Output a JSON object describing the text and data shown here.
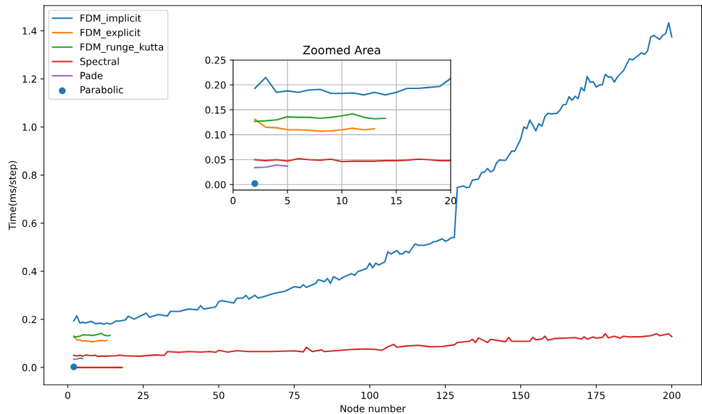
{
  "chart_data": [
    {
      "type": "line",
      "xlabel": "Node number",
      "ylabel": "Time(ms/step)",
      "xlim": [
        -7.9,
        209.9
      ],
      "ylim": [
        -0.072,
        1.505
      ],
      "xticks": [
        0,
        25,
        50,
        75,
        100,
        125,
        150,
        175,
        200
      ],
      "yticks": [
        {
          "value": 0,
          "label": "0.0"
        },
        {
          "value": 0.2,
          "label": "0.2"
        },
        {
          "value": 0.4,
          "label": "0.4"
        },
        {
          "value": 0.6,
          "label": "0.6"
        },
        {
          "value": 0.8,
          "label": "0.8"
        },
        {
          "value": 1.0,
          "label": "1.0"
        },
        {
          "value": 1.2,
          "label": "1.2"
        },
        {
          "value": 1.4,
          "label": "1.4"
        }
      ],
      "grid": false,
      "legend": "top left",
      "series": [
        {
          "name": "FDM_implicit",
          "color": "#1f77b4",
          "type": "line",
          "x": [
            2,
            3,
            4,
            5,
            6,
            7,
            8,
            9,
            10,
            11,
            12,
            13,
            14,
            15,
            16,
            17,
            18,
            19,
            20,
            22,
            26,
            27,
            30,
            33,
            34,
            37,
            40,
            43,
            44,
            45,
            48,
            49,
            50,
            51,
            55,
            56,
            58,
            59,
            60,
            62,
            63,
            65,
            68,
            72,
            75,
            77,
            78,
            79,
            82,
            83,
            85,
            86,
            87,
            88,
            90,
            91,
            94,
            95,
            96,
            99,
            100,
            101,
            102,
            103,
            105,
            106,
            107,
            109,
            110,
            111,
            112,
            113,
            115,
            116,
            118,
            120,
            121,
            122,
            124,
            125,
            126,
            127,
            128,
            129,
            131,
            132,
            133,
            134,
            136,
            137,
            138,
            139,
            140,
            141,
            142,
            143,
            145,
            147,
            148,
            150,
            151,
            152,
            153,
            155,
            156,
            157,
            158,
            159,
            160,
            162,
            163,
            164,
            165,
            166,
            167,
            168,
            169,
            170,
            171,
            172,
            173,
            174,
            175,
            176,
            177,
            178,
            179,
            180,
            181,
            182,
            184,
            186,
            187,
            189,
            190,
            191,
            192,
            193,
            194,
            196,
            197,
            198,
            199,
            200
          ],
          "values": [
            0.193,
            0.215,
            0.185,
            0.188,
            0.185,
            0.19,
            0.191,
            0.183,
            0.183,
            0.184,
            0.18,
            0.185,
            0.18,
            0.185,
            0.193,
            0.193,
            0.195,
            0.197,
            0.213,
            0.201,
            0.226,
            0.209,
            0.22,
            0.214,
            0.233,
            0.233,
            0.243,
            0.24,
            0.257,
            0.243,
            0.249,
            0.252,
            0.274,
            0.278,
            0.268,
            0.288,
            0.288,
            0.3,
            0.284,
            0.3,
            0.288,
            0.295,
            0.307,
            0.317,
            0.336,
            0.332,
            0.344,
            0.333,
            0.349,
            0.365,
            0.357,
            0.37,
            0.35,
            0.378,
            0.364,
            0.374,
            0.39,
            0.383,
            0.398,
            0.412,
            0.434,
            0.414,
            0.434,
            0.426,
            0.439,
            0.481,
            0.472,
            0.486,
            0.472,
            0.473,
            0.484,
            0.477,
            0.514,
            0.508,
            0.508,
            0.514,
            0.522,
            0.524,
            0.535,
            0.525,
            0.53,
            0.54,
            0.54,
            0.748,
            0.755,
            0.748,
            0.75,
            0.779,
            0.784,
            0.81,
            0.813,
            0.827,
            0.813,
            0.82,
            0.851,
            0.863,
            0.861,
            0.9,
            0.899,
            0.95,
            1.0,
            0.993,
            1.029,
            0.984,
            1.014,
            1.003,
            1.043,
            1.057,
            1.054,
            1.057,
            1.07,
            1.092,
            1.094,
            1.126,
            1.111,
            1.128,
            1.118,
            1.164,
            1.15,
            1.21,
            1.186,
            1.188,
            1.166,
            1.174,
            1.176,
            1.219,
            1.208,
            1.208,
            1.187,
            1.208,
            1.234,
            1.284,
            1.279,
            1.298,
            1.309,
            1.301,
            1.317,
            1.373,
            1.381,
            1.364,
            1.381,
            1.388,
            1.433,
            1.375
          ]
        },
        {
          "name": "FDM_explicit",
          "color": "#ff7f0e",
          "type": "line",
          "x": [
            2,
            3,
            4,
            5,
            6,
            7,
            8,
            9,
            10,
            11,
            12,
            13
          ],
          "values": [
            0.131,
            0.115,
            0.114,
            0.11,
            0.11,
            0.109,
            0.107,
            0.108,
            0.11,
            0.113,
            0.11,
            0.112
          ]
        },
        {
          "name": "FDM_runge_kutta",
          "color": "#2ca02c",
          "type": "line",
          "x": [
            2,
            3,
            4,
            5,
            6,
            7,
            8,
            9,
            10,
            11,
            12,
            13,
            14
          ],
          "values": [
            0.127,
            0.128,
            0.13,
            0.136,
            0.135,
            0.135,
            0.133,
            0.135,
            0.138,
            0.142,
            0.135,
            0.132,
            0.133
          ]
        },
        {
          "name": "Spectral",
          "color": "#d62728",
          "type": "line",
          "x": [
            2,
            3,
            4,
            5,
            6,
            7,
            8,
            9,
            10,
            11,
            12,
            13,
            14,
            15,
            16,
            17,
            18,
            19,
            20,
            24,
            29,
            32,
            33,
            37,
            40,
            44,
            47,
            49,
            50,
            53,
            56,
            60,
            67,
            75,
            78,
            79,
            81,
            84,
            85,
            94,
            99,
            102,
            104,
            106,
            108,
            109,
            112,
            116,
            120,
            124,
            128,
            129,
            133,
            134,
            135,
            136,
            139,
            140,
            145,
            146,
            147,
            153,
            154,
            155,
            157,
            158,
            159,
            161,
            168,
            170,
            171,
            172,
            174,
            175,
            177,
            178,
            179,
            181,
            183,
            184,
            186,
            190,
            193,
            195,
            196,
            199,
            200
          ],
          "values": [
            0.05,
            0.048,
            0.05,
            0.047,
            0.052,
            0.05,
            0.049,
            0.051,
            0.046,
            0.047,
            0.047,
            0.047,
            0.048,
            0.048,
            0.049,
            0.051,
            0.05,
            0.048,
            0.048,
            0.047,
            0.052,
            0.05,
            0.066,
            0.063,
            0.066,
            0.064,
            0.066,
            0.063,
            0.071,
            0.064,
            0.07,
            0.066,
            0.066,
            0.069,
            0.065,
            0.084,
            0.066,
            0.073,
            0.066,
            0.075,
            0.077,
            0.075,
            0.071,
            0.086,
            0.096,
            0.084,
            0.089,
            0.092,
            0.086,
            0.087,
            0.094,
            0.104,
            0.109,
            0.117,
            0.104,
            0.123,
            0.104,
            0.117,
            0.107,
            0.125,
            0.109,
            0.109,
            0.125,
            0.115,
            0.118,
            0.13,
            0.113,
            0.12,
            0.124,
            0.118,
            0.127,
            0.118,
            0.127,
            0.122,
            0.125,
            0.14,
            0.123,
            0.13,
            0.122,
            0.13,
            0.127,
            0.128,
            0.132,
            0.14,
            0.132,
            0.14,
            0.128
          ]
        },
        {
          "name": "Pade",
          "color": "#9467bd",
          "type": "line",
          "x": [
            2,
            3,
            4,
            5
          ],
          "values": [
            0.034,
            0.035,
            0.039,
            0.037
          ]
        },
        {
          "name": "Parabolic",
          "color": "#1f77b4",
          "type": "scatter",
          "x": [
            2
          ],
          "values": [
            0.002
          ]
        },
        {
          "color": "#ff0000",
          "type": "line",
          "x": [
            2,
            18
          ],
          "values": [
            0,
            0
          ]
        }
      ]
    },
    {
      "type": "line",
      "title": "Zoomed Area",
      "xlim": [
        0,
        20
      ],
      "ylim": [
        -0.011,
        0.25
      ],
      "xticks": [
        0,
        5,
        10,
        15,
        20
      ],
      "yticks": [
        {
          "value": 0,
          "label": "0.00"
        },
        {
          "value": 0.05,
          "label": "0.05"
        },
        {
          "value": 0.1,
          "label": "0.10"
        },
        {
          "value": 0.15,
          "label": "0.15"
        },
        {
          "value": 0.2,
          "label": "0.20"
        },
        {
          "value": 0.25,
          "label": "0.25"
        }
      ],
      "grid": true,
      "series": [
        {
          "color": "#1f77b4",
          "type": "line",
          "x": [
            2,
            3,
            4,
            5,
            6,
            7,
            8,
            9,
            10,
            11,
            12,
            13,
            14,
            15,
            16,
            17,
            18,
            19,
            20
          ],
          "values": [
            0.193,
            0.215,
            0.185,
            0.188,
            0.185,
            0.19,
            0.191,
            0.183,
            0.183,
            0.184,
            0.18,
            0.185,
            0.18,
            0.185,
            0.193,
            0.193,
            0.195,
            0.197,
            0.213
          ]
        },
        {
          "color": "#ff7f0e",
          "type": "line",
          "x": [
            2,
            3,
            4,
            5,
            6,
            7,
            8,
            9,
            10,
            11,
            12,
            13
          ],
          "values": [
            0.131,
            0.115,
            0.114,
            0.11,
            0.11,
            0.109,
            0.107,
            0.108,
            0.11,
            0.113,
            0.11,
            0.112
          ]
        },
        {
          "color": "#2ca02c",
          "type": "line",
          "x": [
            2,
            3,
            4,
            5,
            6,
            7,
            8,
            9,
            10,
            11,
            12,
            13,
            14
          ],
          "values": [
            0.127,
            0.128,
            0.13,
            0.136,
            0.135,
            0.135,
            0.133,
            0.135,
            0.138,
            0.142,
            0.135,
            0.132,
            0.133
          ]
        },
        {
          "color": "#d62728",
          "type": "line",
          "x": [
            2,
            3,
            4,
            5,
            6,
            7,
            8,
            9,
            10,
            11,
            12,
            13,
            14,
            15,
            16,
            17,
            18,
            19,
            20
          ],
          "values": [
            0.05,
            0.048,
            0.05,
            0.047,
            0.052,
            0.05,
            0.049,
            0.051,
            0.046,
            0.047,
            0.047,
            0.047,
            0.048,
            0.048,
            0.049,
            0.051,
            0.05,
            0.048,
            0.048
          ]
        },
        {
          "color": "#9467bd",
          "type": "line",
          "x": [
            2,
            3,
            4,
            5
          ],
          "values": [
            0.034,
            0.035,
            0.039,
            0.037
          ]
        },
        {
          "color": "#1f77b4",
          "type": "scatter",
          "x": [
            2
          ],
          "values": [
            0.002
          ]
        }
      ]
    }
  ]
}
